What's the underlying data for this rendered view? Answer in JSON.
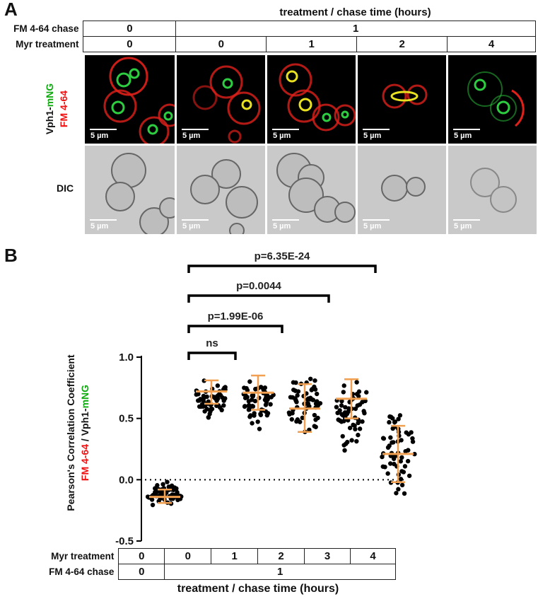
{
  "panel_a": {
    "letter": "A",
    "header_title": "treatment / chase time (hours)",
    "rows": [
      {
        "label": "FM 4-64 chase",
        "cells": [
          "0",
          "1"
        ]
      },
      {
        "label": "Myr treatment",
        "cells": [
          "0",
          "0",
          "1",
          "2",
          "4"
        ]
      }
    ],
    "fluor_label_prefix": "Vph1-",
    "fluor_label_green": "mNG",
    "fluor_label_red": "FM 4-64",
    "dic_label": "DIC",
    "scale_text": "5 µm",
    "colors": {
      "membrane": "#e0201a",
      "vacuole": "#2ecc40",
      "overlap": "#e8e020"
    }
  },
  "panel_b": {
    "letter": "B",
    "ylabel_line1": "Pearson's Correlation Coefficient",
    "ylabel_line2_red": "FM 4-64",
    "ylabel_line2_sep": " / Vph1-",
    "ylabel_line2_green": "mNG",
    "xlabel": "treatment / chase time (hours)",
    "rows": [
      {
        "label": "Myr treatment",
        "cells": [
          "0",
          "0",
          "1",
          "2",
          "3",
          "4"
        ]
      },
      {
        "label": "FM 4-64 chase",
        "cells": [
          "0",
          "1"
        ]
      }
    ],
    "brackets": [
      {
        "label": "ns",
        "from": 1,
        "to": 2
      },
      {
        "label": "p=1.99E-06",
        "from": 1,
        "to": 3
      },
      {
        "label": "p=0.0044",
        "from": 1,
        "to": 4
      },
      {
        "label": "p=6.35E-24",
        "from": 1,
        "to": 5
      }
    ]
  },
  "chart_data": {
    "type": "scatter",
    "ylim": [
      -0.5,
      1.0
    ],
    "yticks": [
      "1.0",
      "0.5",
      "0.0",
      "-0.5"
    ],
    "ytick_values": [
      1.0,
      0.5,
      0.0,
      -0.5
    ],
    "reference_line": 0.0,
    "groups": [
      {
        "myr_treatment": "0",
        "fm_chase": "0",
        "mean": -0.14,
        "sd_low": -0.19,
        "sd_high": -0.08,
        "min": -0.23,
        "max": 0.02
      },
      {
        "myr_treatment": "0",
        "fm_chase": "1",
        "mean": 0.72,
        "sd_low": 0.62,
        "sd_high": 0.81,
        "min": 0.42,
        "max": 0.84
      },
      {
        "myr_treatment": "1",
        "fm_chase": "1",
        "mean": 0.71,
        "sd_low": 0.57,
        "sd_high": 0.85,
        "min": 0.31,
        "max": 0.86
      },
      {
        "myr_treatment": "2",
        "fm_chase": "1",
        "mean": 0.58,
        "sd_low": 0.39,
        "sd_high": 0.78,
        "min": 0.23,
        "max": 0.9
      },
      {
        "myr_treatment": "3",
        "fm_chase": "1",
        "mean": 0.66,
        "sd_low": 0.5,
        "sd_high": 0.82,
        "min": 0.13,
        "max": 0.86
      },
      {
        "myr_treatment": "4",
        "fm_chase": "1",
        "mean": 0.21,
        "sd_low": -0.02,
        "sd_high": 0.44,
        "min": -0.34,
        "max": 0.67
      }
    ],
    "colors": {
      "points": "#000000",
      "mean_sd": "#f0a050"
    }
  }
}
